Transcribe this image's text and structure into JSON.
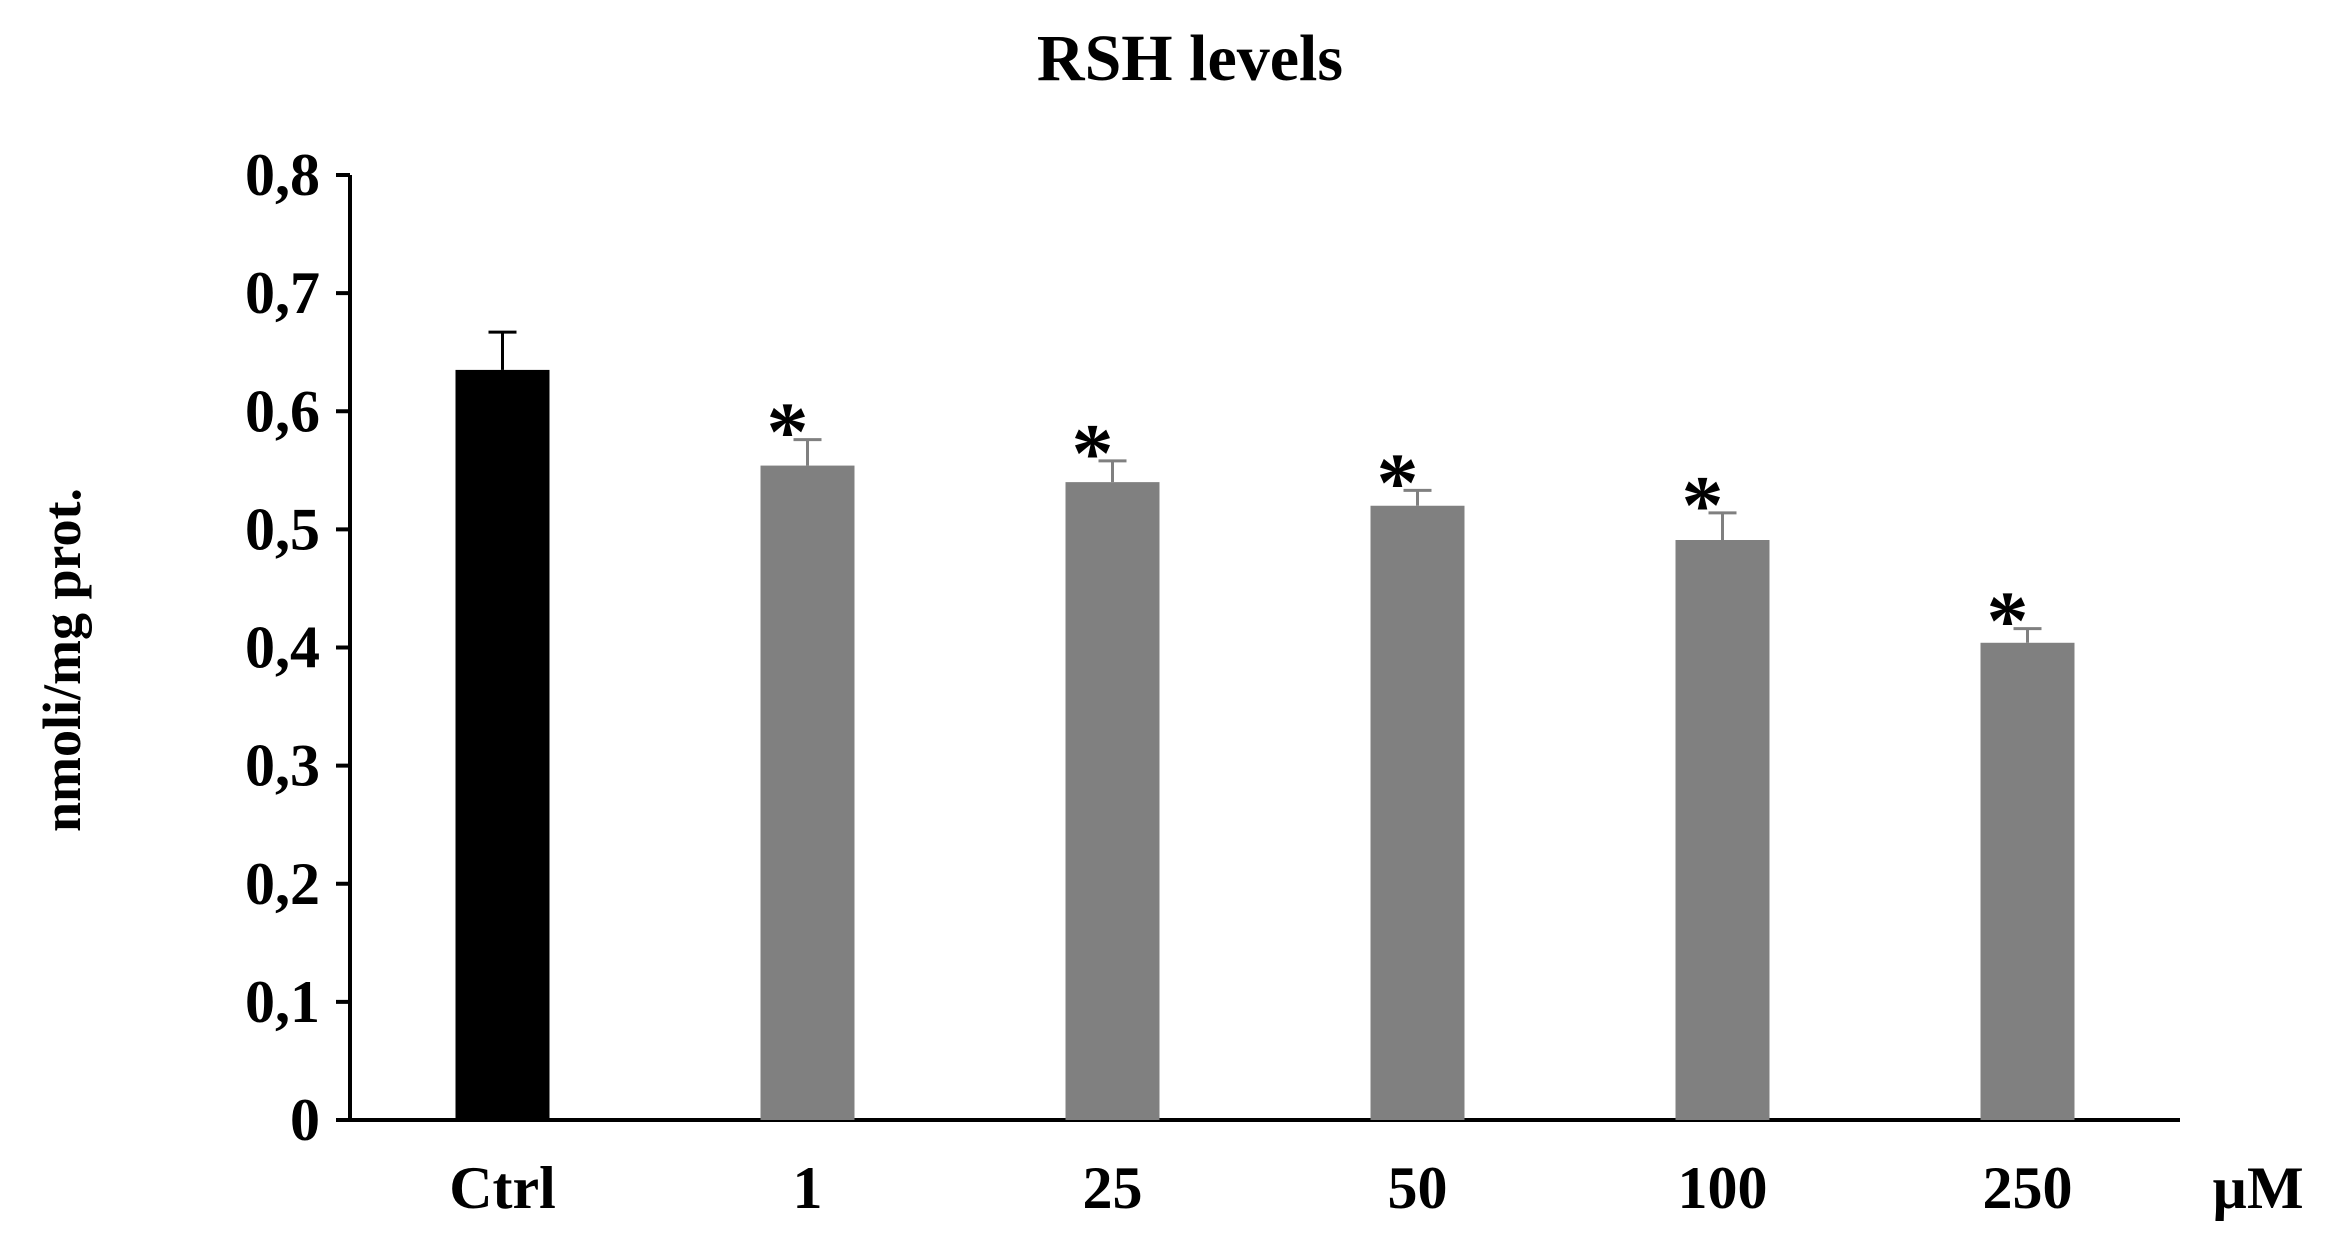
{
  "chart_data": {
    "type": "bar",
    "title": "RSH levels",
    "ylabel": "nmoli/mg prot.",
    "xlabel": "",
    "x_unit_label": "µM",
    "categories": [
      "Ctrl",
      "1",
      "25",
      "50",
      "100",
      "250"
    ],
    "values": [
      0.635,
      0.554,
      0.54,
      0.52,
      0.491,
      0.404
    ],
    "errors": [
      0.032,
      0.022,
      0.018,
      0.013,
      0.023,
      0.012
    ],
    "significance": [
      "",
      "*",
      "*",
      "*",
      "*",
      "*"
    ],
    "bar_colors": [
      "#000000",
      "#808080",
      "#808080",
      "#808080",
      "#808080",
      "#808080"
    ],
    "ylim": [
      0,
      0.8
    ],
    "yticks": [
      0,
      0.1,
      0.2,
      0.3,
      0.4,
      0.5,
      0.6,
      0.7,
      0.8
    ],
    "ytick_labels": [
      "0",
      "0,1",
      "0,2",
      "0,3",
      "0,4",
      "0,5",
      "0,6",
      "0,7",
      "0,8"
    ],
    "grid": false,
    "legend": "none"
  }
}
